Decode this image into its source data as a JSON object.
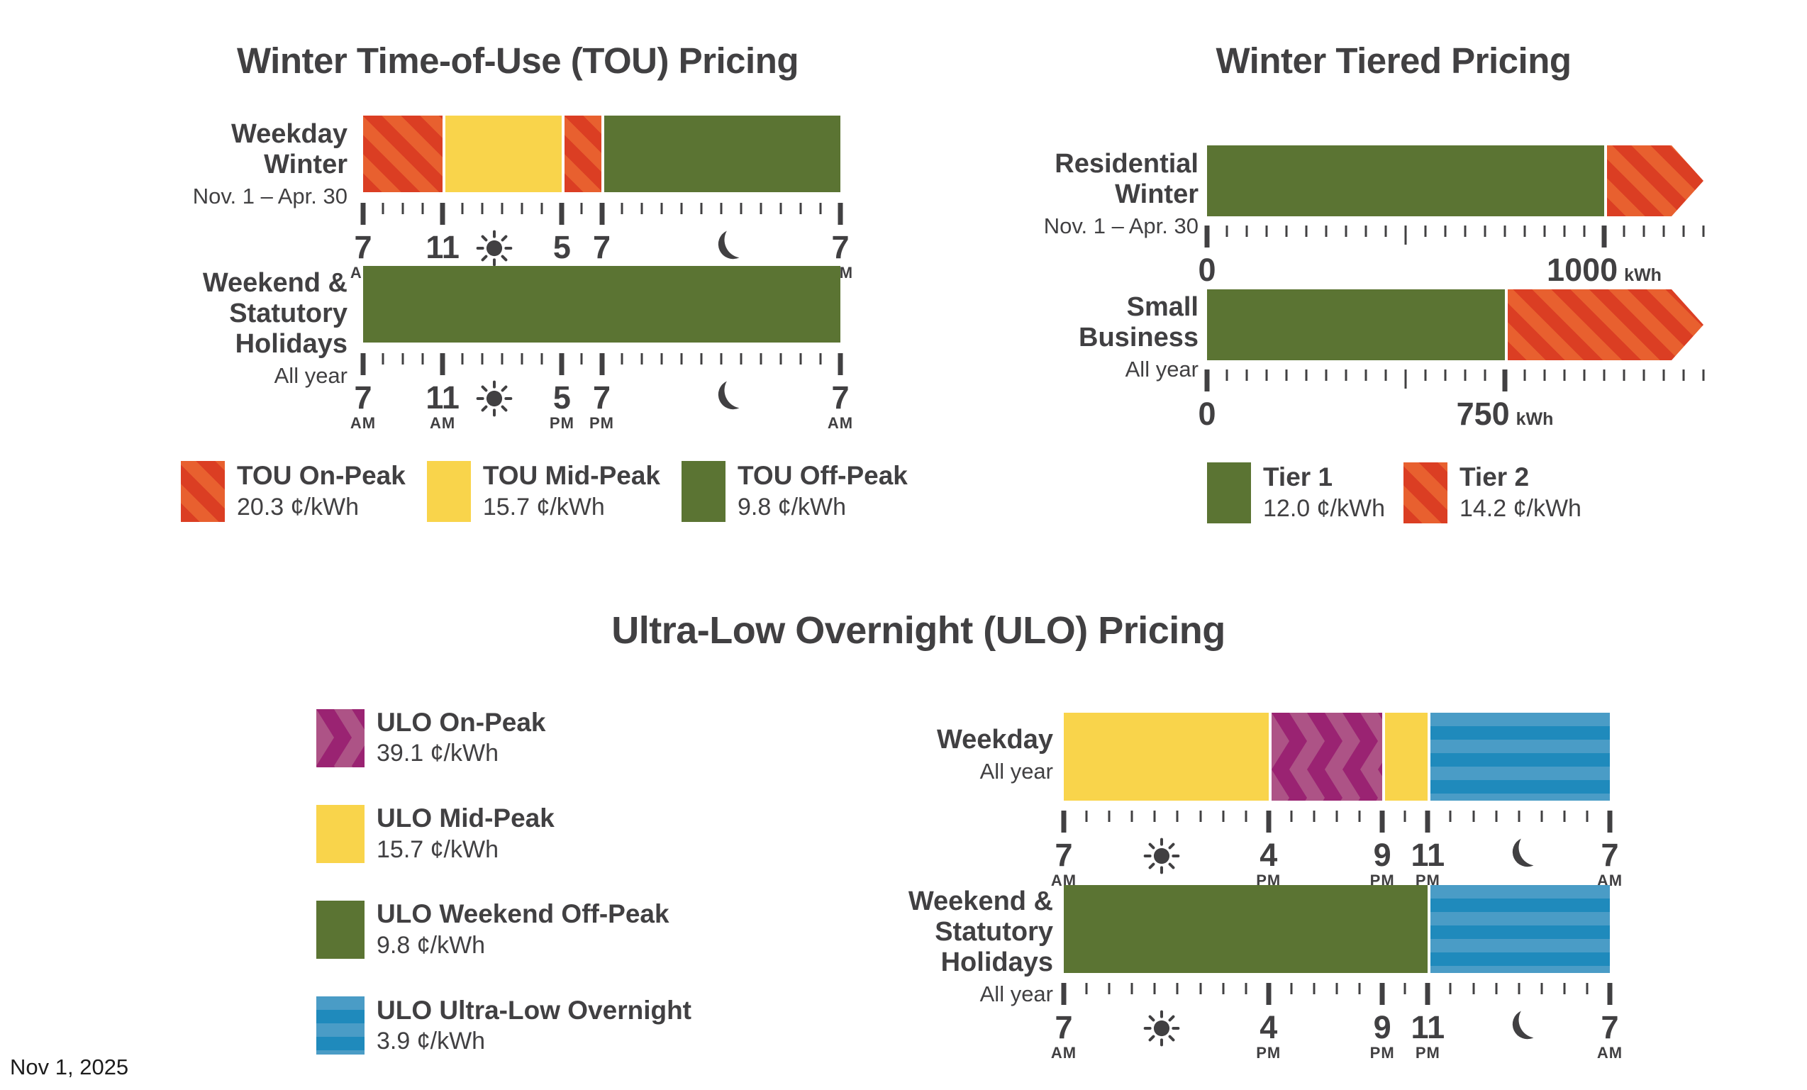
{
  "date_note": "Nov 1, 2025",
  "colors": {
    "text": "#414042",
    "on_peak_red_dark": "#db3e23",
    "on_peak_red_light": "#e8602f",
    "mid_peak_yellow": "#f9d44b",
    "off_peak_green": "#5b7433",
    "ulo_purple_dark": "#9a2372",
    "ulo_purple_light": "#ad5386",
    "ulo_blue_dark": "#1f8abc",
    "ulo_blue_light": "#4a9cc6"
  },
  "tou": {
    "title": "Winter Time-of-Use (TOU) Pricing",
    "rows": [
      {
        "label_lines": [
          "Weekday",
          "Winter"
        ],
        "sublabel": "Nov. 1 – Apr. 30",
        "segments": [
          {
            "class": "hatch-red",
            "from": 0,
            "to": 4
          },
          {
            "class": "solid-yellow",
            "from": 4,
            "to": 10
          },
          {
            "class": "hatch-red",
            "from": 10,
            "to": 12
          },
          {
            "class": "solid-green",
            "from": 12,
            "to": 24
          }
        ]
      },
      {
        "label_lines": [
          "Weekend &",
          "Statutory",
          "Holidays"
        ],
        "sublabel": "All year",
        "segments": [
          {
            "class": "solid-green",
            "from": 0,
            "to": 24
          }
        ]
      }
    ],
    "axis": {
      "total": 24,
      "minor_step": 1,
      "majors": [
        {
          "pos": 0,
          "num": "7",
          "sub": "AM"
        },
        {
          "pos": 4,
          "num": "11",
          "sub": "AM"
        },
        {
          "pos": 10,
          "num": "5",
          "sub": "PM"
        },
        {
          "pos": 12,
          "num": "7",
          "sub": "PM"
        },
        {
          "pos": 24,
          "num": "7",
          "sub": "AM"
        }
      ],
      "icons": [
        {
          "name": "sun",
          "pos": 6.6
        },
        {
          "name": "moon",
          "pos": 18.4
        }
      ]
    },
    "legend": [
      {
        "label": "TOU On-Peak",
        "price": "20.3 ¢/kWh",
        "swatch": "hatch-red"
      },
      {
        "label": "TOU Mid-Peak",
        "price": "15.7 ¢/kWh",
        "swatch": "solid-yellow"
      },
      {
        "label": "TOU Off-Peak",
        "price": "9.8 ¢/kWh",
        "swatch": "solid-green"
      }
    ]
  },
  "tiered": {
    "title": "Winter Tiered Pricing",
    "rows": [
      {
        "label_lines": [
          "Residential",
          "Winter"
        ],
        "sublabel": "Nov. 1 – Apr. 30",
        "segments": [
          {
            "class": "solid-green",
            "from": 0,
            "to": 1000
          },
          {
            "class": "hatch-red",
            "from": 1000,
            "to": 1250,
            "arrow": true
          }
        ],
        "axis": {
          "total": 1250,
          "minor_step": 50,
          "mediums": [
            500
          ],
          "majors": [
            {
              "pos": 0,
              "num": "0",
              "sub": ""
            },
            {
              "pos": 1000,
              "num": "1000",
              "sub": "kWh",
              "sub_inline": true
            }
          ],
          "icons": []
        }
      },
      {
        "label_lines": [
          "Small",
          "Business"
        ],
        "sublabel": "All year",
        "segments": [
          {
            "class": "solid-green",
            "from": 0,
            "to": 750
          },
          {
            "class": "hatch-red",
            "from": 750,
            "to": 1250,
            "arrow": true
          }
        ],
        "axis": {
          "total": 1250,
          "minor_step": 50,
          "mediums": [
            500
          ],
          "majors": [
            {
              "pos": 0,
              "num": "0",
              "sub": ""
            },
            {
              "pos": 750,
              "num": "750",
              "sub": "kWh",
              "sub_inline": true
            }
          ],
          "icons": []
        }
      }
    ],
    "legend": [
      {
        "label": "Tier 1",
        "price": "12.0 ¢/kWh",
        "swatch": "solid-green"
      },
      {
        "label": "Tier 2",
        "price": "14.2 ¢/kWh",
        "swatch": "hatch-red"
      }
    ]
  },
  "ulo": {
    "title": "Ultra-Low Overnight (ULO) Pricing",
    "legend": [
      {
        "label": "ULO On-Peak",
        "price": "39.1 ¢/kWh",
        "swatch": "chevron-purple"
      },
      {
        "label": "ULO Mid-Peak",
        "price": "15.7 ¢/kWh",
        "swatch": "solid-yellow"
      },
      {
        "label": "ULO Weekend Off-Peak",
        "price": "9.8 ¢/kWh",
        "swatch": "solid-green"
      },
      {
        "label": "ULO Ultra-Low Overnight",
        "price": "3.9 ¢/kWh",
        "swatch": "stripe-blue"
      }
    ],
    "rows": [
      {
        "label_lines": [
          "Weekday"
        ],
        "sublabel": "All year",
        "segments": [
          {
            "class": "solid-yellow",
            "from": 0,
            "to": 9
          },
          {
            "class": "chevron-purple",
            "from": 9,
            "to": 14
          },
          {
            "class": "solid-yellow",
            "from": 14,
            "to": 16
          },
          {
            "class": "stripe-blue",
            "from": 16,
            "to": 24
          }
        ]
      },
      {
        "label_lines": [
          "Weekend &",
          "Statutory",
          "Holidays"
        ],
        "sublabel": "All year",
        "segments": [
          {
            "class": "solid-green",
            "from": 0,
            "to": 16
          },
          {
            "class": "stripe-blue",
            "from": 16,
            "to": 24
          }
        ]
      }
    ],
    "axis": {
      "total": 24,
      "minor_step": 1,
      "majors": [
        {
          "pos": 0,
          "num": "7",
          "sub": "AM"
        },
        {
          "pos": 9,
          "num": "4",
          "sub": "PM"
        },
        {
          "pos": 14,
          "num": "9",
          "sub": "PM"
        },
        {
          "pos": 16,
          "num": "11",
          "sub": "PM"
        },
        {
          "pos": 24,
          "num": "7",
          "sub": "AM"
        }
      ],
      "icons": [
        {
          "name": "sun",
          "pos": 4.3
        },
        {
          "name": "moon",
          "pos": 20.2
        }
      ]
    }
  },
  "chart_data": [
    {
      "type": "bar",
      "title": "Winter Time-of-Use (TOU) Pricing",
      "x_unit": "time of day",
      "x_range": [
        "7 AM",
        "7 AM next day"
      ],
      "rows": [
        {
          "category": "Weekday Winter (Nov. 1 – Apr. 30)",
          "segments": [
            {
              "label": "TOU On-Peak",
              "start": "7 AM",
              "end": "11 AM",
              "rate_cents_per_kWh": 20.3
            },
            {
              "label": "TOU Mid-Peak",
              "start": "11 AM",
              "end": "5 PM",
              "rate_cents_per_kWh": 15.7
            },
            {
              "label": "TOU On-Peak",
              "start": "5 PM",
              "end": "7 PM",
              "rate_cents_per_kWh": 20.3
            },
            {
              "label": "TOU Off-Peak",
              "start": "7 PM",
              "end": "7 AM",
              "rate_cents_per_kWh": 9.8
            }
          ]
        },
        {
          "category": "Weekend & Statutory Holidays (All year)",
          "segments": [
            {
              "label": "TOU Off-Peak",
              "start": "7 AM",
              "end": "7 AM",
              "rate_cents_per_kWh": 9.8
            }
          ]
        }
      ],
      "legend": [
        {
          "label": "TOU On-Peak",
          "rate": "20.3 ¢/kWh"
        },
        {
          "label": "TOU Mid-Peak",
          "rate": "15.7 ¢/kWh"
        },
        {
          "label": "TOU Off-Peak",
          "rate": "9.8 ¢/kWh"
        }
      ]
    },
    {
      "type": "bar",
      "title": "Winter Tiered Pricing",
      "x_unit": "kWh",
      "rows": [
        {
          "category": "Residential Winter (Nov. 1 – Apr. 30)",
          "segments": [
            {
              "label": "Tier 1",
              "start_kWh": 0,
              "end_kWh": 1000,
              "rate_cents_per_kWh": 12.0
            },
            {
              "label": "Tier 2",
              "start_kWh": 1000,
              "end_kWh": "above 1000",
              "rate_cents_per_kWh": 14.2
            }
          ]
        },
        {
          "category": "Small Business (All year)",
          "segments": [
            {
              "label": "Tier 1",
              "start_kWh": 0,
              "end_kWh": 750,
              "rate_cents_per_kWh": 12.0
            },
            {
              "label": "Tier 2",
              "start_kWh": 750,
              "end_kWh": "above 750",
              "rate_cents_per_kWh": 14.2
            }
          ]
        }
      ],
      "legend": [
        {
          "label": "Tier 1",
          "rate": "12.0 ¢/kWh"
        },
        {
          "label": "Tier 2",
          "rate": "14.2 ¢/kWh"
        }
      ]
    },
    {
      "type": "bar",
      "title": "Ultra-Low Overnight (ULO) Pricing",
      "x_unit": "time of day",
      "x_range": [
        "7 AM",
        "7 AM next day"
      ],
      "rows": [
        {
          "category": "Weekday (All year)",
          "segments": [
            {
              "label": "ULO Mid-Peak",
              "start": "7 AM",
              "end": "4 PM",
              "rate_cents_per_kWh": 15.7
            },
            {
              "label": "ULO On-Peak",
              "start": "4 PM",
              "end": "9 PM",
              "rate_cents_per_kWh": 39.1
            },
            {
              "label": "ULO Mid-Peak",
              "start": "9 PM",
              "end": "11 PM",
              "rate_cents_per_kWh": 15.7
            },
            {
              "label": "ULO Ultra-Low Overnight",
              "start": "11 PM",
              "end": "7 AM",
              "rate_cents_per_kWh": 3.9
            }
          ]
        },
        {
          "category": "Weekend & Statutory Holidays (All year)",
          "segments": [
            {
              "label": "ULO Weekend Off-Peak",
              "start": "7 AM",
              "end": "11 PM",
              "rate_cents_per_kWh": 9.8
            },
            {
              "label": "ULO Ultra-Low Overnight",
              "start": "11 PM",
              "end": "7 AM",
              "rate_cents_per_kWh": 3.9
            }
          ]
        }
      ],
      "legend": [
        {
          "label": "ULO On-Peak",
          "rate": "39.1 ¢/kWh"
        },
        {
          "label": "ULO Mid-Peak",
          "rate": "15.7 ¢/kWh"
        },
        {
          "label": "ULO Weekend Off-Peak",
          "rate": "9.8 ¢/kWh"
        },
        {
          "label": "ULO Ultra-Low Overnight",
          "rate": "3.9 ¢/kWh"
        }
      ]
    }
  ]
}
